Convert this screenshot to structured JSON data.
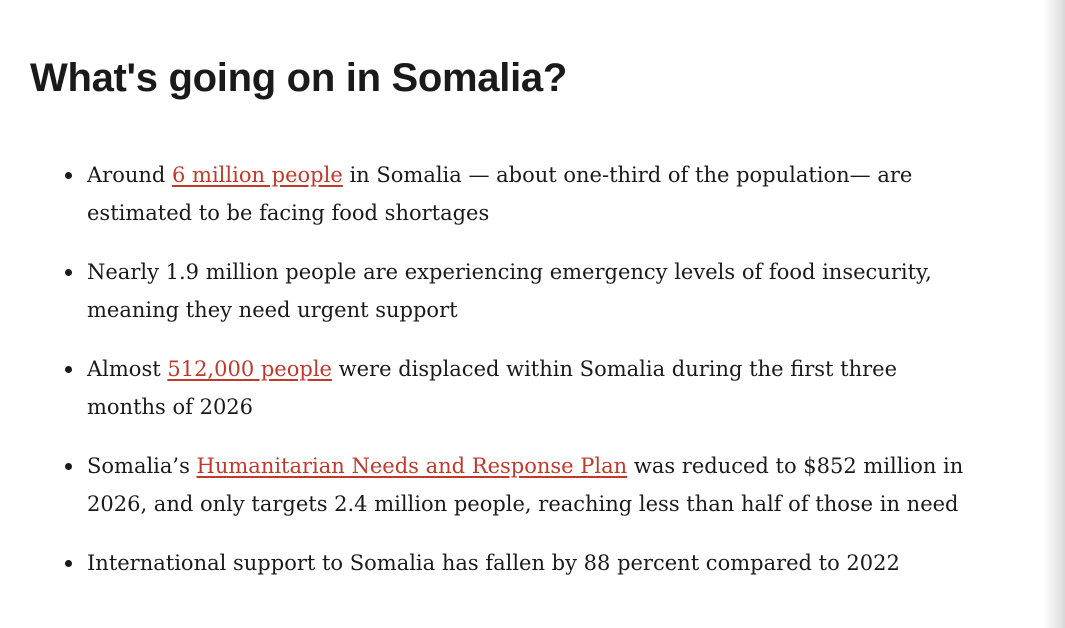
{
  "heading": "What's going on in Somalia?",
  "list": [
    {
      "segments": [
        {
          "text": "Around "
        },
        {
          "text": "6 million people",
          "link": true
        },
        {
          "text": " in Somalia — about one-third of the population— are estimated to be facing food shortages"
        }
      ]
    },
    {
      "segments": [
        {
          "text": "Nearly 1.9 million people are experiencing emergency levels of food insecurity, meaning they need urgent support"
        }
      ]
    },
    {
      "segments": [
        {
          "text": "Almost "
        },
        {
          "text": "512,000 people",
          "link": true
        },
        {
          "text": " were displaced within Somalia during the first three months of 2026"
        }
      ]
    },
    {
      "segments": [
        {
          "text": "Somalia’s "
        },
        {
          "text": "Humanitarian Needs and Response Plan",
          "link": true
        },
        {
          "text": " was reduced to $852 million in 2026, and only targets 2.4 million people, reaching less than half of those in need"
        }
      ]
    },
    {
      "segments": [
        {
          "text": "International support to Somalia has fallen by 88 percent compared to 2022"
        }
      ]
    }
  ]
}
